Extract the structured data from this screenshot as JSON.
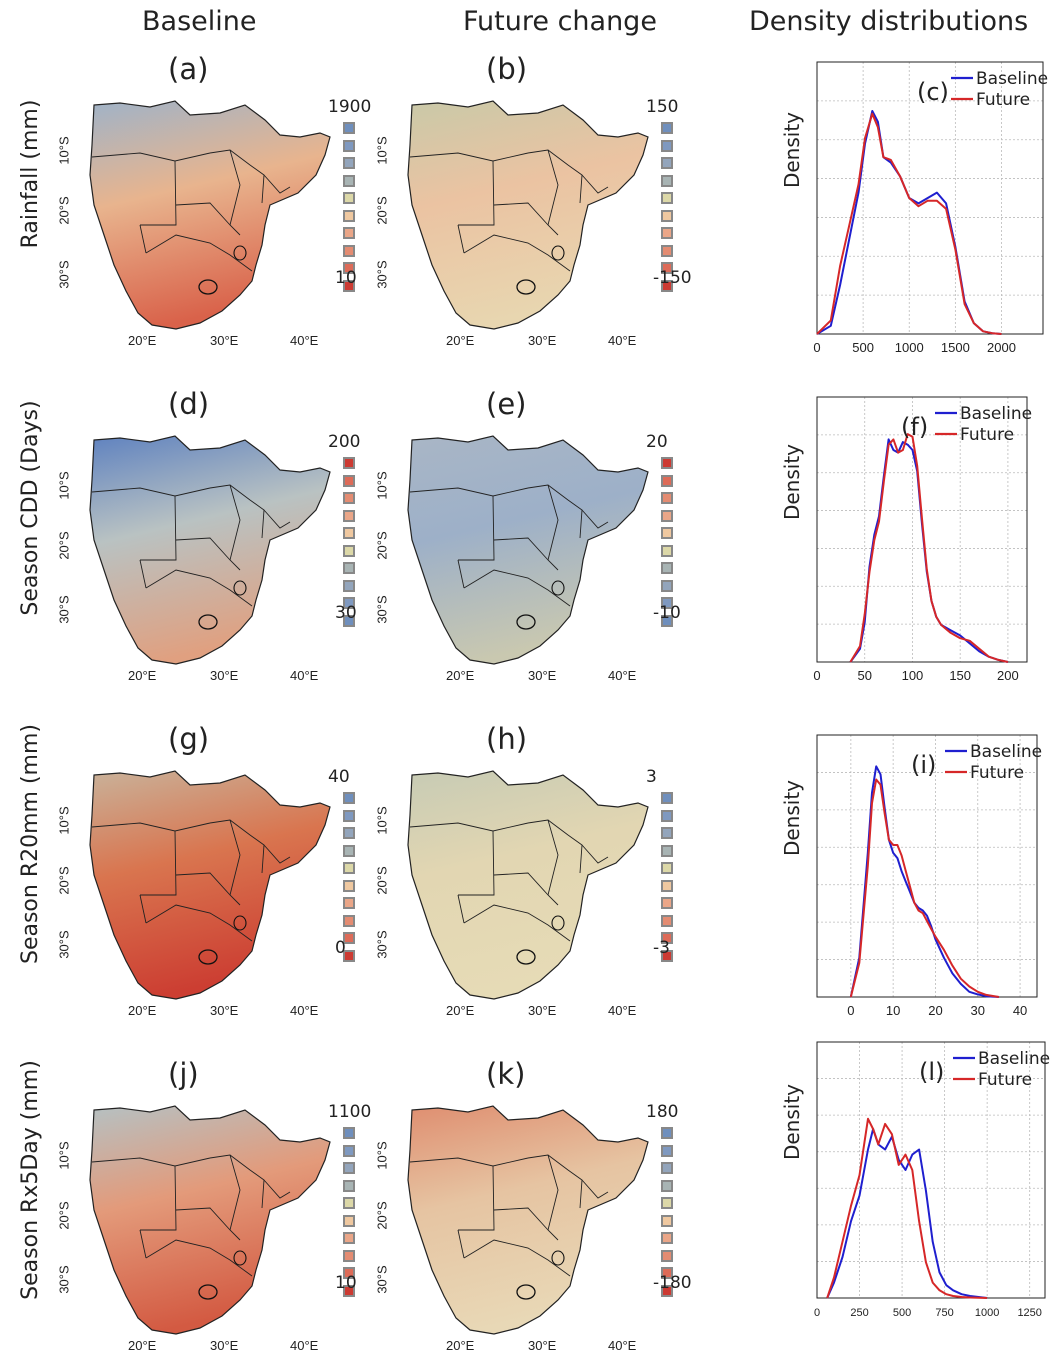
{
  "column_headers": [
    "Baseline",
    "Future change",
    "Density distributions"
  ],
  "row_labels": [
    "Rainfall (mm)",
    "Season CDD (Days)",
    "Season R20mm (mm)",
    "Season Rx5Day (mm)"
  ],
  "map_panels": [
    {
      "letter": "(a)",
      "legend_max": "1900",
      "legend_min": "10",
      "legend_colors": [
        "#6f8fbd",
        "#7f99c0",
        "#93a5bc",
        "#a8b4b4",
        "#dcd8a8",
        "#efc8a0",
        "#eaa688",
        "#e48c72",
        "#dd6b58",
        "#cc3a32"
      ],
      "lat": [
        "10°S",
        "20°S",
        "30°S"
      ],
      "lon": [
        "20°E",
        "30°E",
        "40°E"
      ]
    },
    {
      "letter": "(b)",
      "legend_max": "150",
      "legend_min": "-150",
      "legend_colors": [
        "#6f8fbd",
        "#7f99c0",
        "#93a5bc",
        "#a8b4b4",
        "#dcd8a8",
        "#efc8a0",
        "#eaa688",
        "#e48c72",
        "#dd6b58",
        "#cc3a32"
      ],
      "lat": [
        "10°S",
        "20°S",
        "30°S"
      ],
      "lon": [
        "20°E",
        "30°E",
        "40°E"
      ]
    },
    {
      "letter": "(d)",
      "legend_max": "200",
      "legend_min": "30",
      "legend_colors": [
        "#cc3a32",
        "#dd6b58",
        "#e48c72",
        "#eaa688",
        "#efc8a0",
        "#dcd8a8",
        "#a8b4b4",
        "#93a5bc",
        "#7f99c0",
        "#6f8fbd"
      ],
      "lat": [
        "10°S",
        "20°S",
        "30°S"
      ],
      "lon": [
        "20°E",
        "30°E",
        "40°E"
      ]
    },
    {
      "letter": "(e)",
      "legend_max": "20",
      "legend_min": "-10",
      "legend_colors": [
        "#cc3a32",
        "#dd6b58",
        "#e48c72",
        "#eaa688",
        "#efc8a0",
        "#dcd8a8",
        "#a8b4b4",
        "#93a5bc",
        "#7f99c0",
        "#6f8fbd"
      ],
      "lat": [
        "10°S",
        "20°S",
        "30°S"
      ],
      "lon": [
        "20°E",
        "30°E",
        "40°E"
      ]
    },
    {
      "letter": "(g)",
      "legend_max": "40",
      "legend_min": "0",
      "legend_colors": [
        "#6f8fbd",
        "#7f99c0",
        "#93a5bc",
        "#a8b4b4",
        "#dcd8a8",
        "#efc8a0",
        "#eaa688",
        "#e48c72",
        "#dd6b58",
        "#cc3a32"
      ],
      "lat": [
        "10°S",
        "20°S",
        "30°S"
      ],
      "lon": [
        "20°E",
        "30°E",
        "40°E"
      ]
    },
    {
      "letter": "(h)",
      "legend_max": "3",
      "legend_min": "-3",
      "legend_colors": [
        "#6f8fbd",
        "#7f99c0",
        "#93a5bc",
        "#a8b4b4",
        "#dcd8a8",
        "#efc8a0",
        "#eaa688",
        "#e48c72",
        "#dd6b58",
        "#cc3a32"
      ],
      "lat": [
        "10°S",
        "20°S",
        "30°S"
      ],
      "lon": [
        "20°E",
        "30°E",
        "40°E"
      ]
    },
    {
      "letter": "(j)",
      "legend_max": "1100",
      "legend_min": "10",
      "legend_colors": [
        "#6f8fbd",
        "#7f99c0",
        "#93a5bc",
        "#a8b4b4",
        "#dcd8a8",
        "#efc8a0",
        "#eaa688",
        "#e48c72",
        "#dd6b58",
        "#cc3a32"
      ],
      "lat": [
        "10°S",
        "20°S",
        "30°S"
      ],
      "lon": [
        "20°E",
        "30°E",
        "40°E"
      ]
    },
    {
      "letter": "(k)",
      "legend_max": "180",
      "legend_min": "-180",
      "legend_colors": [
        "#6f8fbd",
        "#7f99c0",
        "#93a5bc",
        "#a8b4b4",
        "#dcd8a8",
        "#efc8a0",
        "#eaa688",
        "#e48c72",
        "#dd6b58",
        "#cc3a32"
      ],
      "lat": [
        "10°S",
        "20°S",
        "30°S"
      ],
      "lon": [
        "20°E",
        "30°E",
        "40°E"
      ]
    }
  ],
  "colors": {
    "baseline": "#1f1fcf",
    "future": "#d62728"
  },
  "chart_data": [
    {
      "type": "line",
      "letter": "(c)",
      "ylabel": "Density",
      "xlabel": "",
      "xlim": [
        0,
        2450
      ],
      "xticks": [
        0,
        500,
        1000,
        1500,
        2000
      ],
      "legend": [
        "Baseline",
        "Future"
      ],
      "legend_placement": "top-right",
      "grid": true,
      "series": [
        {
          "name": "Baseline",
          "x": [
            0,
            150,
            250,
            350,
            450,
            520,
            600,
            660,
            720,
            800,
            900,
            1000,
            1100,
            1200,
            1300,
            1400,
            1500,
            1600,
            1700,
            1800,
            1900,
            2000
          ],
          "y": [
            0,
            0.03,
            0.18,
            0.35,
            0.52,
            0.7,
            0.82,
            0.78,
            0.65,
            0.63,
            0.58,
            0.5,
            0.48,
            0.5,
            0.52,
            0.48,
            0.32,
            0.12,
            0.04,
            0.01,
            0.003,
            0
          ]
        },
        {
          "name": "Future",
          "x": [
            0,
            150,
            250,
            350,
            450,
            520,
            600,
            660,
            720,
            800,
            900,
            1000,
            1100,
            1200,
            1300,
            1400,
            1500,
            1600,
            1700,
            1800,
            1900,
            2000
          ],
          "y": [
            0,
            0.05,
            0.25,
            0.4,
            0.55,
            0.72,
            0.81,
            0.76,
            0.65,
            0.64,
            0.58,
            0.5,
            0.47,
            0.49,
            0.49,
            0.46,
            0.31,
            0.11,
            0.04,
            0.01,
            0.003,
            0
          ]
        }
      ]
    },
    {
      "type": "line",
      "letter": "(f)",
      "ylabel": "Density",
      "xlabel": "",
      "xlim": [
        0,
        220
      ],
      "xticks": [
        0,
        50,
        100,
        150,
        200
      ],
      "legend": [
        "Baseline",
        "Future"
      ],
      "legend_placement": "top-right",
      "grid": true,
      "series": [
        {
          "name": "Baseline",
          "x": [
            35,
            45,
            50,
            55,
            60,
            65,
            70,
            75,
            80,
            85,
            90,
            95,
            100,
            105,
            110,
            115,
            120,
            125,
            130,
            140,
            150,
            160,
            170,
            180,
            190,
            200
          ],
          "y": [
            0,
            0.05,
            0.15,
            0.36,
            0.48,
            0.55,
            0.7,
            0.84,
            0.8,
            0.79,
            0.83,
            0.82,
            0.8,
            0.72,
            0.52,
            0.34,
            0.23,
            0.17,
            0.14,
            0.12,
            0.1,
            0.07,
            0.04,
            0.02,
            0.008,
            0
          ]
        },
        {
          "name": "Future",
          "x": [
            35,
            45,
            50,
            55,
            60,
            65,
            70,
            75,
            80,
            85,
            90,
            95,
            100,
            105,
            110,
            115,
            120,
            125,
            130,
            140,
            150,
            160,
            170,
            180,
            190,
            200
          ],
          "y": [
            0,
            0.06,
            0.18,
            0.34,
            0.46,
            0.53,
            0.68,
            0.82,
            0.84,
            0.79,
            0.8,
            0.86,
            0.85,
            0.74,
            0.54,
            0.35,
            0.23,
            0.17,
            0.14,
            0.11,
            0.09,
            0.08,
            0.05,
            0.02,
            0.008,
            0
          ]
        }
      ]
    },
    {
      "type": "line",
      "letter": "(i)",
      "ylabel": "Density",
      "xlabel": "",
      "xlim": [
        -8,
        44
      ],
      "xticks": [
        0,
        10,
        20,
        30,
        40
      ],
      "legend": [
        "Baseline",
        "Future"
      ],
      "legend_placement": "top-right",
      "grid": true,
      "series": [
        {
          "name": "Baseline",
          "x": [
            0,
            2,
            4,
            5,
            6,
            7,
            8,
            9,
            10,
            11,
            12,
            13,
            14,
            15,
            16,
            17,
            18,
            19,
            20,
            22,
            24,
            26,
            28,
            30,
            32,
            35
          ],
          "y": [
            0,
            0.15,
            0.55,
            0.78,
            0.88,
            0.85,
            0.72,
            0.6,
            0.55,
            0.53,
            0.48,
            0.44,
            0.4,
            0.36,
            0.34,
            0.33,
            0.31,
            0.27,
            0.22,
            0.15,
            0.09,
            0.05,
            0.02,
            0.01,
            0.003,
            0
          ]
        },
        {
          "name": "Future",
          "x": [
            0,
            2,
            4,
            5,
            6,
            7,
            8,
            9,
            10,
            11,
            12,
            13,
            14,
            15,
            16,
            17,
            18,
            19,
            20,
            22,
            24,
            26,
            28,
            30,
            32,
            35
          ],
          "y": [
            0,
            0.13,
            0.5,
            0.74,
            0.83,
            0.81,
            0.7,
            0.6,
            0.58,
            0.58,
            0.54,
            0.48,
            0.42,
            0.36,
            0.33,
            0.32,
            0.29,
            0.26,
            0.23,
            0.18,
            0.12,
            0.07,
            0.04,
            0.02,
            0.008,
            0
          ]
        }
      ]
    },
    {
      "type": "line",
      "letter": "(l)",
      "ylabel": "Density",
      "xlabel": "",
      "xlim": [
        0,
        1340
      ],
      "xticks": [
        0,
        250,
        500,
        750,
        1000,
        1250
      ],
      "legend": [
        "Baseline",
        "Future"
      ],
      "legend_placement": "top-right",
      "grid": true,
      "series": [
        {
          "name": "Baseline",
          "x": [
            60,
            100,
            150,
            200,
            250,
            300,
            330,
            360,
            400,
            440,
            480,
            520,
            560,
            600,
            640,
            680,
            720,
            760,
            800,
            850,
            900,
            950,
            1000
          ],
          "y": [
            0,
            0.06,
            0.16,
            0.3,
            0.4,
            0.58,
            0.66,
            0.6,
            0.58,
            0.63,
            0.54,
            0.5,
            0.56,
            0.58,
            0.42,
            0.22,
            0.1,
            0.05,
            0.03,
            0.015,
            0.008,
            0.004,
            0
          ]
        },
        {
          "name": "Future",
          "x": [
            60,
            100,
            150,
            200,
            250,
            300,
            330,
            360,
            400,
            440,
            480,
            520,
            560,
            600,
            640,
            680,
            720,
            760,
            800,
            850,
            900,
            950,
            1000
          ],
          "y": [
            0,
            0.08,
            0.22,
            0.36,
            0.48,
            0.7,
            0.66,
            0.6,
            0.68,
            0.64,
            0.52,
            0.56,
            0.5,
            0.3,
            0.14,
            0.06,
            0.03,
            0.015,
            0.008,
            0.004,
            0.002,
            0.001,
            0
          ]
        }
      ]
    }
  ]
}
